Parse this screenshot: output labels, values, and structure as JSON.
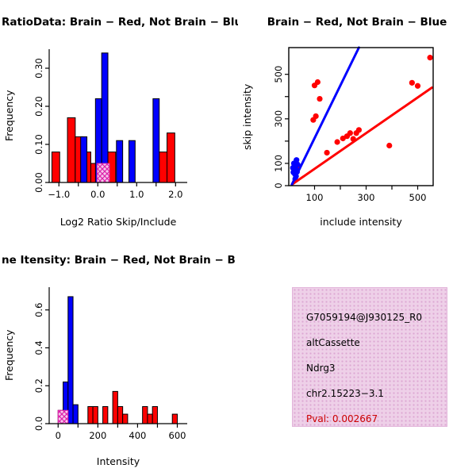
{
  "colors": {
    "series": {
      "brain": "#FF0000",
      "notbrain": "#0000FF"
    },
    "highlight_fill": "#F6C6EC",
    "highlight_line": "#DD22AA",
    "axis": "#000000",
    "background": "#FFFFFF",
    "infobox_bg": "#EED0E8",
    "infobox_dot": "#DCA6D2"
  },
  "chart_data": [
    {
      "id": "hist_ratio",
      "type": "bar",
      "title": "RatioData: Brain − Red, Not Brain − Blu",
      "xlabel": "Log2 Ratio Skip/Include",
      "ylabel": "Frequency",
      "xlim": [
        -1.25,
        2.3
      ],
      "ylim": [
        0,
        0.35
      ],
      "xticks": {
        "at": [
          -1,
          -0.5,
          0,
          0.5,
          1,
          1.5,
          2
        ],
        "labels": [
          "−1.0",
          "",
          "0.0",
          "",
          "1.0",
          "",
          "2.0"
        ]
      },
      "yticks": {
        "at": [
          0,
          0.1,
          0.2,
          0.3
        ],
        "labels": [
          "0.00",
          "0.10",
          "0.20",
          "0.30"
        ]
      },
      "legend_note": "Brain = red, Not Brain = blue, highlighted event = pink hatch",
      "bars": [
        {
          "x0": -1.18,
          "x1": -0.98,
          "h": 0.08,
          "series": "brain"
        },
        {
          "x0": -0.78,
          "x1": -0.58,
          "h": 0.17,
          "series": "brain"
        },
        {
          "x0": -0.58,
          "x1": -0.38,
          "h": 0.12,
          "series": "brain"
        },
        {
          "x0": -0.38,
          "x1": -0.18,
          "h": 0.08,
          "series": "brain"
        },
        {
          "x0": -0.18,
          "x1": 0.02,
          "h": 0.05,
          "series": "brain"
        },
        {
          "x0": 0.26,
          "x1": 0.46,
          "h": 0.08,
          "series": "brain"
        },
        {
          "x0": 1.58,
          "x1": 1.78,
          "h": 0.08,
          "series": "brain"
        },
        {
          "x0": 1.78,
          "x1": 1.98,
          "h": 0.13,
          "series": "brain"
        },
        {
          "x0": -0.44,
          "x1": -0.28,
          "h": 0.12,
          "series": "notbrain"
        },
        {
          "x0": -0.06,
          "x1": 0.1,
          "h": 0.22,
          "series": "notbrain"
        },
        {
          "x0": 0.1,
          "x1": 0.26,
          "h": 0.34,
          "series": "notbrain"
        },
        {
          "x0": 0.48,
          "x1": 0.64,
          "h": 0.11,
          "series": "notbrain"
        },
        {
          "x0": 0.8,
          "x1": 0.96,
          "h": 0.11,
          "series": "notbrain"
        },
        {
          "x0": 1.42,
          "x1": 1.58,
          "h": 0.22,
          "series": "notbrain"
        },
        {
          "x0": -0.02,
          "x1": 0.3,
          "h": 0.05,
          "series": "highlight"
        }
      ]
    },
    {
      "id": "scatter",
      "type": "scatter",
      "title": "Brain − Red, Not Brain − Blue",
      "xlabel": "include intensity",
      "ylabel": "skip intensity",
      "xlim": [
        0,
        560
      ],
      "ylim": [
        0,
        620
      ],
      "xticks": {
        "at": [
          100,
          200,
          300,
          400,
          500
        ],
        "labels": [
          "100",
          "",
          "300",
          "",
          "500"
        ]
      },
      "yticks": {
        "at": [
          0,
          100,
          200,
          300,
          400,
          500
        ],
        "labels": [
          "0",
          "100",
          "",
          "300",
          "",
          "500"
        ]
      },
      "points": {
        "brain": [
          [
            35,
            88
          ],
          [
            95,
            295
          ],
          [
            105,
            312
          ],
          [
            100,
            450
          ],
          [
            112,
            465
          ],
          [
            120,
            390
          ],
          [
            148,
            148
          ],
          [
            188,
            196
          ],
          [
            210,
            212
          ],
          [
            226,
            222
          ],
          [
            238,
            236
          ],
          [
            250,
            210
          ],
          [
            262,
            236
          ],
          [
            272,
            250
          ],
          [
            390,
            180
          ],
          [
            478,
            462
          ],
          [
            500,
            448
          ],
          [
            548,
            575
          ]
        ],
        "notbrain": [
          [
            16,
            80
          ],
          [
            18,
            60
          ],
          [
            20,
            100
          ],
          [
            22,
            75
          ],
          [
            24,
            52
          ],
          [
            26,
            88
          ],
          [
            28,
            42
          ],
          [
            30,
            70
          ],
          [
            32,
            62
          ],
          [
            34,
            95
          ],
          [
            25,
            30
          ],
          [
            30,
            115
          ]
        ]
      },
      "lines": [
        {
          "series": "brain",
          "x1": 12,
          "y1": 5,
          "x2": 555,
          "y2": 440
        },
        {
          "series": "notbrain",
          "x1": 12,
          "y1": 5,
          "x2": 272,
          "y2": 620
        }
      ]
    },
    {
      "id": "hist_intensity",
      "type": "bar",
      "title": "ne Itensity: Brain − Red, Not Brain − B",
      "xlabel": "Intensity",
      "ylabel": "Frequency",
      "xlim": [
        -45,
        650
      ],
      "ylim": [
        0,
        0.72
      ],
      "xticks": {
        "at": [
          0,
          100,
          200,
          300,
          400,
          500,
          600
        ],
        "labels": [
          "0",
          "",
          "200",
          "",
          "400",
          "",
          "600"
        ]
      },
      "yticks": {
        "at": [
          0,
          0.2,
          0.4,
          0.6
        ],
        "labels": [
          "0.0",
          "0.2",
          "0.4",
          "0.6"
        ]
      },
      "bars": [
        {
          "x0": 0,
          "x1": 25,
          "h": 0.07,
          "series": "brain"
        },
        {
          "x0": 150,
          "x1": 175,
          "h": 0.09,
          "series": "brain"
        },
        {
          "x0": 175,
          "x1": 200,
          "h": 0.09,
          "series": "brain"
        },
        {
          "x0": 225,
          "x1": 250,
          "h": 0.09,
          "series": "brain"
        },
        {
          "x0": 275,
          "x1": 300,
          "h": 0.17,
          "series": "brain"
        },
        {
          "x0": 300,
          "x1": 325,
          "h": 0.09,
          "series": "brain"
        },
        {
          "x0": 325,
          "x1": 350,
          "h": 0.05,
          "series": "brain"
        },
        {
          "x0": 425,
          "x1": 450,
          "h": 0.09,
          "series": "brain"
        },
        {
          "x0": 450,
          "x1": 475,
          "h": 0.05,
          "series": "brain"
        },
        {
          "x0": 475,
          "x1": 500,
          "h": 0.09,
          "series": "brain"
        },
        {
          "x0": 575,
          "x1": 600,
          "h": 0.05,
          "series": "brain"
        },
        {
          "x0": 25,
          "x1": 50,
          "h": 0.22,
          "series": "notbrain"
        },
        {
          "x0": 50,
          "x1": 75,
          "h": 0.67,
          "series": "notbrain"
        },
        {
          "x0": 75,
          "x1": 100,
          "h": 0.1,
          "series": "notbrain"
        },
        {
          "x0": 0,
          "x1": 50,
          "h": 0.07,
          "series": "highlight"
        }
      ]
    }
  ],
  "info_box": {
    "lines": [
      {
        "text": "G7059194@J930125_R0",
        "color": "#000000"
      },
      {
        "text": "altCassette",
        "color": "#000000"
      },
      {
        "text": "Ndrg3",
        "color": "#000000"
      },
      {
        "text": "chr2.15223−3.1",
        "color": "#000000"
      },
      {
        "text": "Pval: 0.002667",
        "color": "#CC0000"
      }
    ]
  }
}
